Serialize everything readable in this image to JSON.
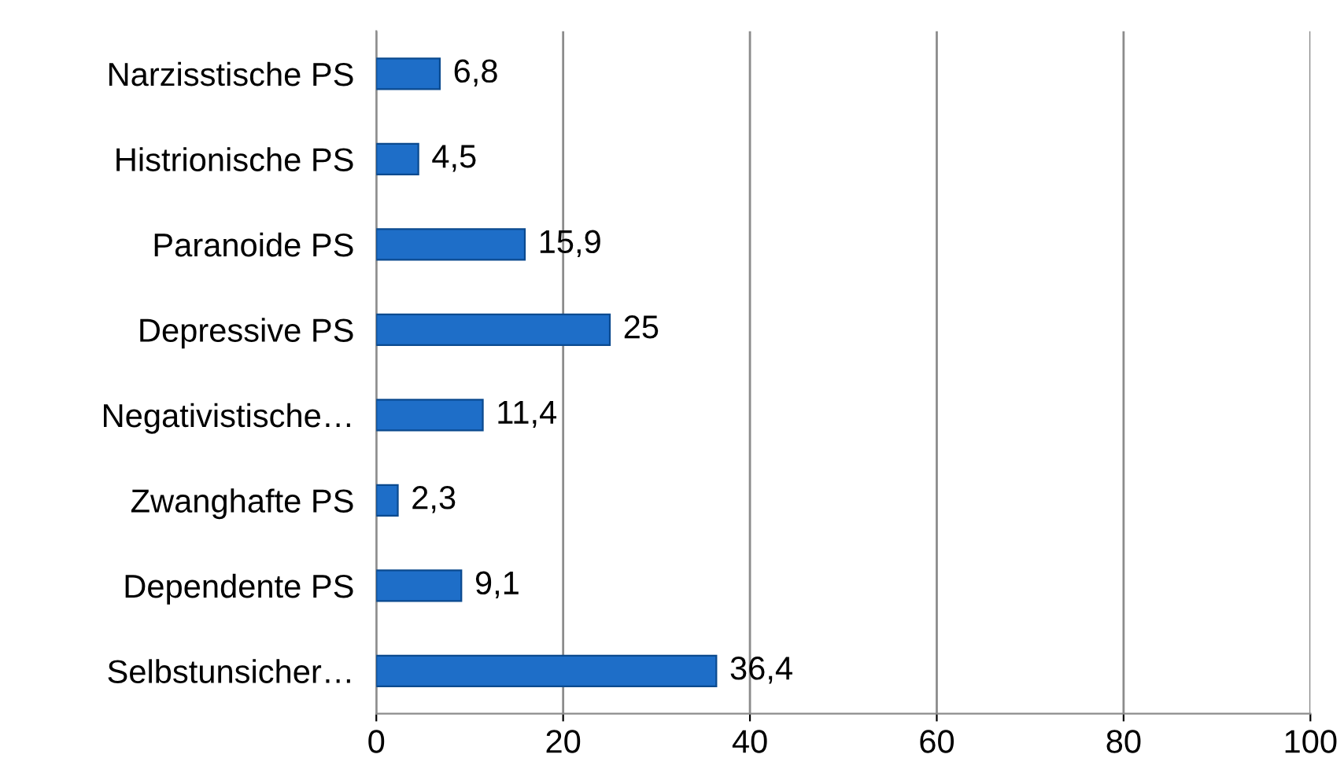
{
  "chart_data": {
    "type": "bar",
    "orientation": "horizontal",
    "categories": [
      "Narzisstische PS",
      "Histrionische PS",
      "Paranoide PS",
      "Depressive PS",
      "Negativistische…",
      "Zwanghafte PS",
      "Dependente PS",
      "Selbstunsicher…"
    ],
    "values": [
      6.8,
      4.5,
      15.9,
      25,
      11.4,
      2.3,
      9.1,
      36.4
    ],
    "value_labels": [
      "6,8",
      "4,5",
      "15,9",
      "25",
      "11,4",
      "2,3",
      "9,1",
      "36,4"
    ],
    "color": "#1e6ec8",
    "xlim": [
      0,
      100
    ],
    "xticks": [
      0,
      20,
      40,
      60,
      80,
      100
    ],
    "grid": "x",
    "legend": false
  }
}
